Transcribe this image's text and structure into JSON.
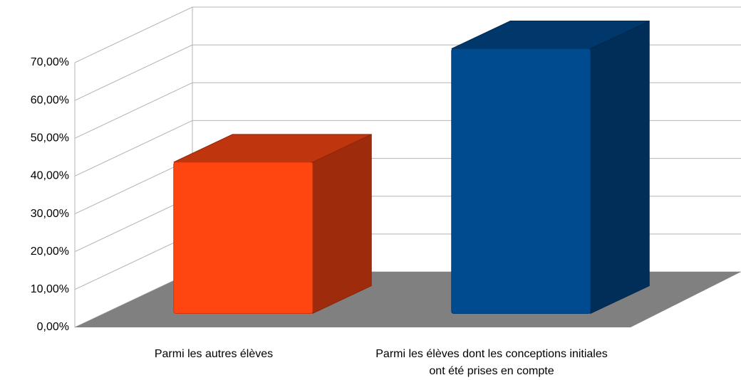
{
  "chart_data": {
    "type": "bar3d",
    "categories": [
      "Parmi les autres élèves",
      "Parmi les élèves dont les conceptions initiales ont été prises en compte"
    ],
    "values": [
      40,
      70
    ],
    "colors": [
      "#ff4611",
      "#004a8f"
    ],
    "ylim": [
      0,
      70
    ],
    "yticks": [
      {
        "value": 0,
        "label": "0,00%"
      },
      {
        "value": 10,
        "label": "10,00%"
      },
      {
        "value": 20,
        "label": "20,00%"
      },
      {
        "value": 30,
        "label": "30,00%"
      },
      {
        "value": 40,
        "label": "40,00%"
      },
      {
        "value": 50,
        "label": "50,00%"
      },
      {
        "value": 60,
        "label": "60,00%"
      },
      {
        "value": 70,
        "label": "70,00%"
      }
    ],
    "grid": true
  }
}
